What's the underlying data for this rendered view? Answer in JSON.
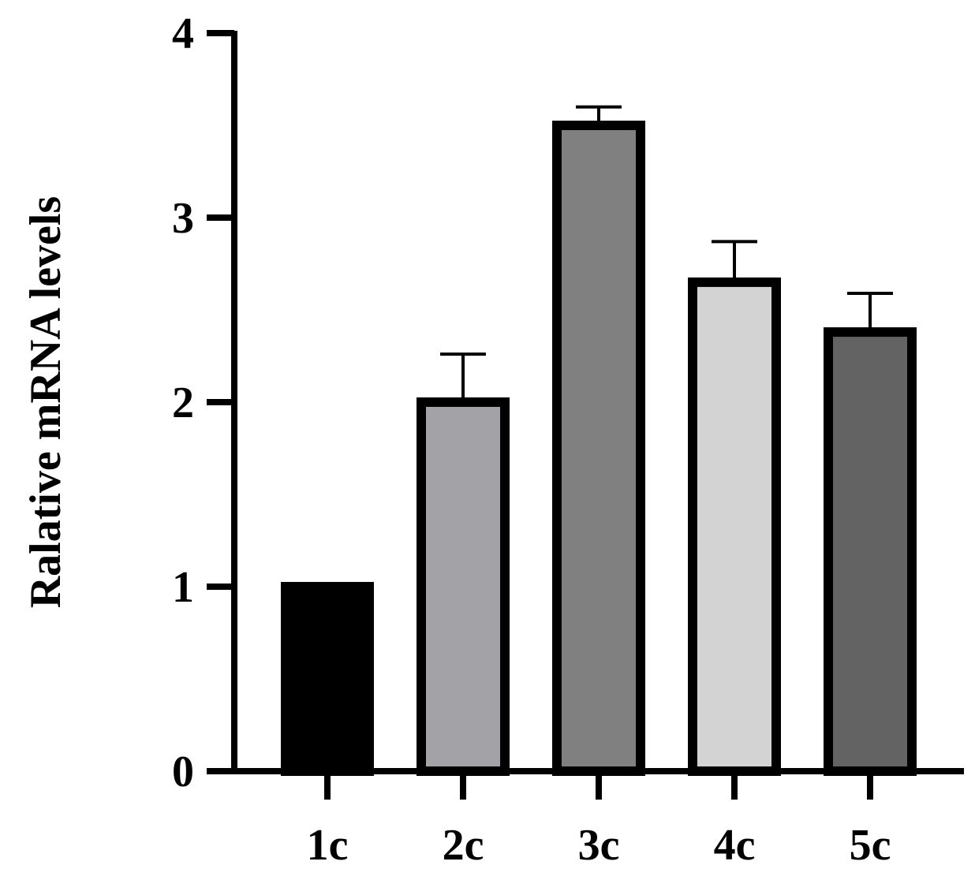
{
  "chart_data": {
    "type": "bar",
    "title": "",
    "xlabel": "",
    "ylabel": "Ralative mRNA levels",
    "categories": [
      "1c",
      "2c",
      "3c",
      "4c",
      "5c"
    ],
    "values": [
      1.0,
      2.0,
      3.5,
      2.65,
      2.38
    ],
    "errors": [
      0.0,
      0.26,
      0.1,
      0.22,
      0.21
    ],
    "colors": [
      "#000000",
      "#a3a3a7",
      "#808080",
      "#d3d3d3",
      "#636363"
    ],
    "ylim": [
      0,
      4
    ],
    "yticks": [
      "0",
      "1",
      "2",
      "3",
      "4"
    ],
    "grid": false,
    "legend": "none"
  }
}
